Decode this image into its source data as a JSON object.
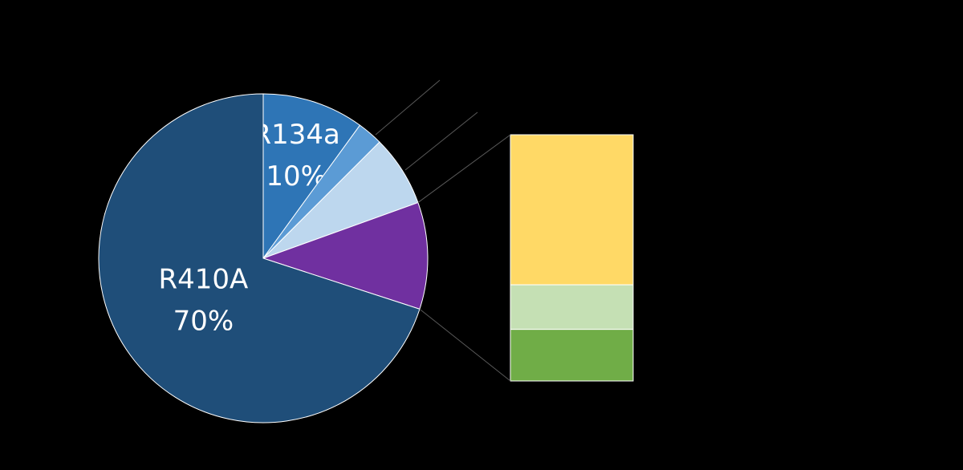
{
  "chart_data": {
    "type": "pie",
    "categories": [
      "R134a",
      null,
      null,
      null,
      "R410A"
    ],
    "values": [
      10,
      2.5,
      7,
      10.5,
      70
    ],
    "value_labels": [
      "10%",
      null,
      null,
      null,
      "70%"
    ],
    "colors": [
      "#2e75b6",
      "#5b9bd5",
      "#bdd7ee",
      "#7030a0",
      "#1f4e79"
    ],
    "bar_values": [
      6.4,
      1.9,
      2.2
    ],
    "bar_colors": [
      "#ffd966",
      "#c5e0b4",
      "#70ad47"
    ]
  }
}
